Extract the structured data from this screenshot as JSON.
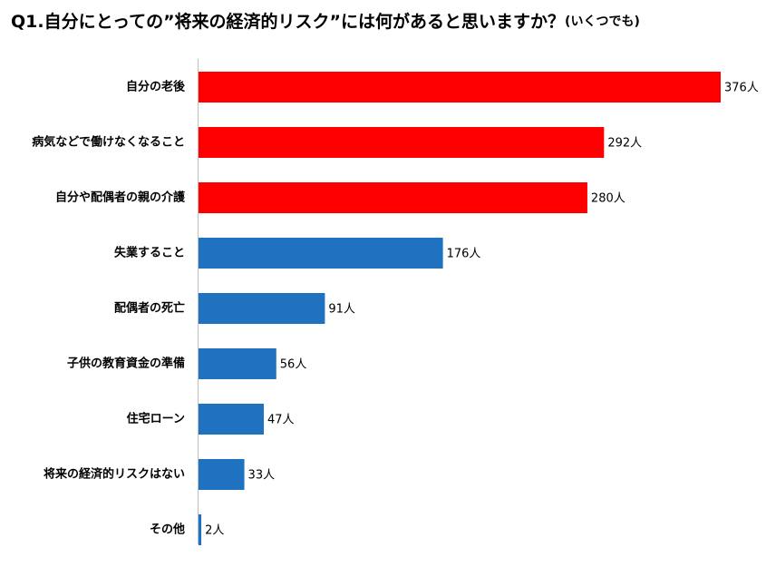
{
  "chart_data": {
    "type": "bar",
    "orientation": "horizontal",
    "title": "Q1.自分にとっての”将来の経済的リスク”には何があると思いますか？",
    "subtitle": "(いくつでも)",
    "categories": [
      "自分の老後",
      "病気などで働けなくなること",
      "自分や配偶者の親の介護",
      "失業すること",
      "配偶者の死亡",
      "子供の教育資金の準備",
      "住宅ローン",
      "将来の経済的リスクはない",
      "その他"
    ],
    "values": [
      376,
      292,
      280,
      176,
      91,
      56,
      47,
      33,
      2
    ],
    "value_labels": [
      "376人",
      "292人",
      "280人",
      "176人",
      "91人",
      "56人",
      "47人",
      "33人",
      "2人"
    ],
    "colors": [
      "#ff0000",
      "#ff0000",
      "#ff0000",
      "#1f72bf",
      "#1f72bf",
      "#1f72bf",
      "#1f72bf",
      "#1f72bf",
      "#1f72bf"
    ]
  }
}
